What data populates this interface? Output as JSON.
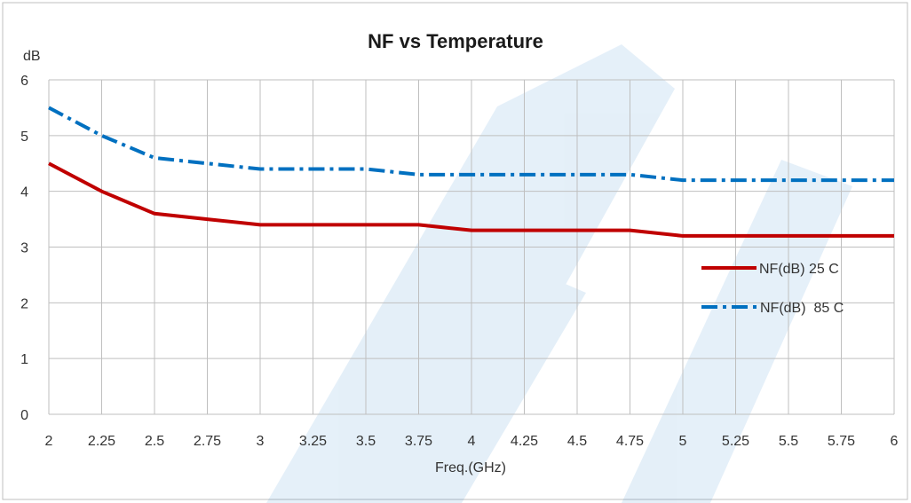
{
  "chart_data": {
    "type": "line",
    "title": "NF vs Temperature",
    "xlabel": "Freq.(GHz)",
    "ylabel": "dB",
    "x": [
      2,
      2.25,
      2.5,
      2.75,
      3,
      3.25,
      3.5,
      3.75,
      4,
      4.25,
      4.5,
      4.75,
      5,
      5.25,
      5.5,
      5.75,
      6
    ],
    "x_tick_labels": [
      "2",
      "2.25",
      "2.5",
      "2.75",
      "3",
      "3.25",
      "3.5",
      "3.75",
      "4",
      "4.25",
      "4.5",
      "4.75",
      "5",
      "5.25",
      "5.5",
      "5.75",
      "6"
    ],
    "y_tick_labels": [
      "0",
      "1",
      "2",
      "3",
      "4",
      "5",
      "6"
    ],
    "xlim": [
      2,
      6
    ],
    "ylim": [
      0,
      6
    ],
    "grid": true,
    "legend_position": "right",
    "series": [
      {
        "name": "NF(dB) 25 C",
        "color": "#C00000",
        "style": "solid",
        "values": [
          4.5,
          4.0,
          3.6,
          3.5,
          3.4,
          3.4,
          3.4,
          3.4,
          3.3,
          3.3,
          3.3,
          3.3,
          3.2,
          3.2,
          3.2,
          3.2,
          3.2
        ]
      },
      {
        "name": "NF(dB)  85 C",
        "color": "#0070C0",
        "style": "dash-dot",
        "values": [
          5.5,
          5.0,
          4.6,
          4.5,
          4.4,
          4.4,
          4.4,
          4.3,
          4.3,
          4.3,
          4.3,
          4.3,
          4.2,
          4.2,
          4.2,
          4.2,
          4.2
        ]
      }
    ]
  }
}
